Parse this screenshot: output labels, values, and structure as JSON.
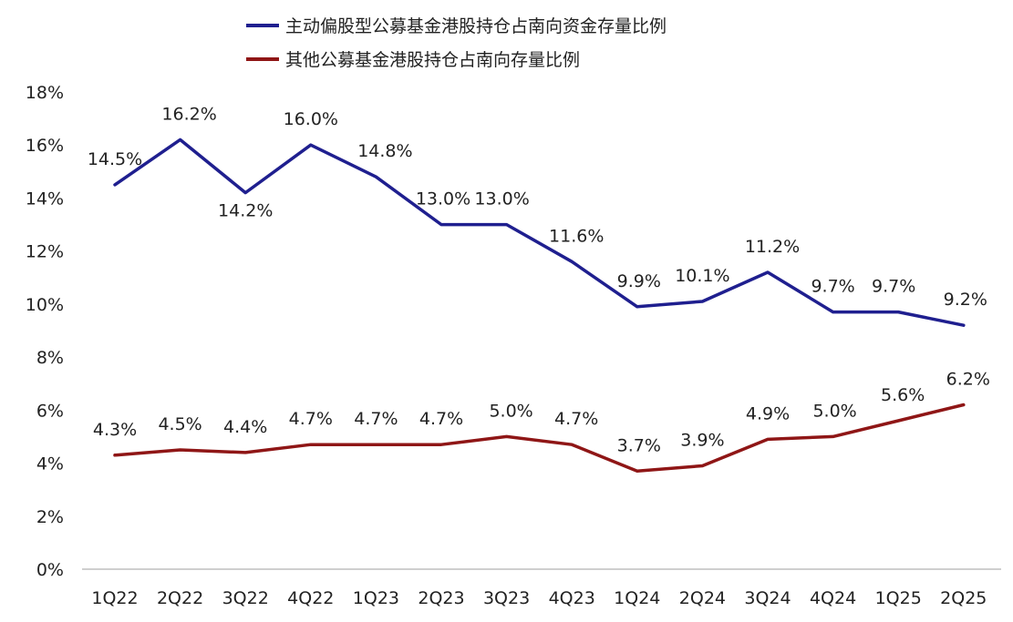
{
  "chart_data": {
    "type": "line",
    "title": "",
    "xlabel": "",
    "ylabel": "",
    "categories": [
      "1Q22",
      "2Q22",
      "3Q22",
      "4Q22",
      "1Q23",
      "2Q23",
      "3Q23",
      "4Q23",
      "1Q24",
      "2Q24",
      "3Q24",
      "4Q24",
      "1Q25",
      "2Q25"
    ],
    "ylim": [
      0,
      18
    ],
    "yticks": [
      "0%",
      "2%",
      "4%",
      "6%",
      "8%",
      "10%",
      "12%",
      "14%",
      "16%",
      "18%"
    ],
    "grid": false,
    "legend_position": "top",
    "series": [
      {
        "name": "主动偏股型公募基金港股持仓占南向资金存量比例",
        "color": "#1f1f8f",
        "values": [
          14.5,
          16.2,
          14.2,
          16.0,
          14.8,
          13.0,
          13.0,
          11.6,
          9.9,
          10.1,
          11.2,
          9.7,
          9.7,
          9.2
        ],
        "labels": [
          "14.5%",
          "16.2%",
          "14.2%",
          "16.0%",
          "14.8%",
          "13.0%",
          "13.0%",
          "11.6%",
          "9.9%",
          "10.1%",
          "11.2%",
          "9.7%",
          "9.7%",
          "9.2%"
        ]
      },
      {
        "name": "其他公募基金港股持仓占南向存量比例",
        "color": "#8f1616",
        "values": [
          4.3,
          4.5,
          4.4,
          4.7,
          4.7,
          4.7,
          5.0,
          4.7,
          3.7,
          3.9,
          4.9,
          5.0,
          5.6,
          6.2
        ],
        "labels": [
          "4.3%",
          "4.5%",
          "4.4%",
          "4.7%",
          "4.7%",
          "4.7%",
          "5.0%",
          "4.7%",
          "3.7%",
          "3.9%",
          "4.9%",
          "5.0%",
          "5.6%",
          "6.2%"
        ]
      }
    ]
  }
}
